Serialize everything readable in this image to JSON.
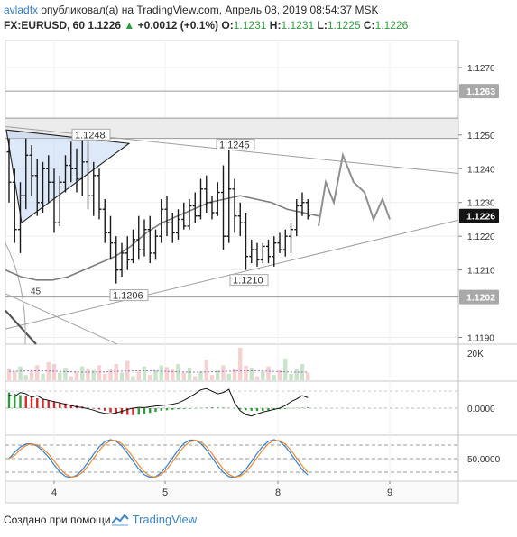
{
  "header": {
    "author": "avladfx",
    "published_text": "опубликовал(а) на TradingView.com, Апрель 08, 2019 08:54:37 MSK",
    "symbol": "FX:EURUSD, 60",
    "last": "1.1226",
    "change": "+0.0012 (+0.1%)",
    "o_label": "O:",
    "o_value": "1.1231",
    "h_label": "H:",
    "h_value": "1.1231",
    "l_label": "L:",
    "l_value": "1.1225",
    "c_label": "C:",
    "c_value": "1.1226"
  },
  "footer": {
    "created_with": "Создано при помощи",
    "brand": "TradingView"
  },
  "colors": {
    "accent_blue": "#2f7fd0",
    "up_green": "#2e9e3b",
    "down_red": "#d42b2b",
    "candle": "#1a1a1a",
    "ma_gray": "#7d7d7d",
    "forecast_gray": "#8f8f8f",
    "stoch_blue": "#2e7fd9",
    "stoch_orange": "#f08a2b"
  },
  "chart_data": [
    {
      "type": "candlestick",
      "panel": "price",
      "x_ticks": [
        "4",
        "5",
        "8",
        "9"
      ],
      "y_ticks": [
        1.127,
        1.125,
        1.124,
        1.123,
        1.122,
        1.121,
        1.119
      ],
      "y_tick_labels": [
        "1.1270",
        "1.1250",
        "1.1240",
        "1.1230",
        "1.1220",
        "1.1210",
        "1.1190"
      ],
      "ylim": [
        1.1188,
        1.1278
      ],
      "price_badges": [
        {
          "value": 1.1263,
          "label": "1.1263",
          "style": "gray"
        },
        {
          "value": 1.1226,
          "label": "1.1226",
          "style": "dark"
        },
        {
          "value": 1.1202,
          "label": "1.1202",
          "style": "gray"
        }
      ],
      "annotations": [
        {
          "text": "1.1248",
          "x": 12,
          "y": 1.1248
        },
        {
          "text": "1.1245",
          "x": 43,
          "y": 1.1245
        },
        {
          "text": "1.1206",
          "x": 23,
          "y": 1.1206
        },
        {
          "text": "1.1210",
          "x": 45,
          "y": 1.121
        },
        {
          "text": "45",
          "x": 2,
          "y": 1.1203
        }
      ],
      "horizontal_levels": [
        1.1263,
        1.1255,
        1.1249,
        1.1202
      ],
      "candles": [
        [
          1.1245,
          1.1249,
          1.123,
          1.1236
        ],
        [
          1.1236,
          1.124,
          1.1218,
          1.1222
        ],
        [
          1.1222,
          1.1236,
          1.1215,
          1.1232
        ],
        [
          1.1232,
          1.1249,
          1.1228,
          1.1244
        ],
        [
          1.1244,
          1.1247,
          1.1232,
          1.1238
        ],
        [
          1.1238,
          1.1243,
          1.1226,
          1.123
        ],
        [
          1.123,
          1.1242,
          1.1227,
          1.124
        ],
        [
          1.124,
          1.1244,
          1.123,
          1.1236
        ],
        [
          1.1236,
          1.124,
          1.1221,
          1.1224
        ],
        [
          1.1224,
          1.1238,
          1.1223,
          1.1236
        ],
        [
          1.1236,
          1.1244,
          1.1233,
          1.1241
        ],
        [
          1.1241,
          1.1248,
          1.1236,
          1.124
        ],
        [
          1.124,
          1.1246,
          1.1233,
          1.1237
        ],
        [
          1.1237,
          1.1249,
          1.1232,
          1.1242
        ],
        [
          1.1242,
          1.1248,
          1.1228,
          1.1232
        ],
        [
          1.1232,
          1.1242,
          1.1226,
          1.1238
        ],
        [
          1.1238,
          1.124,
          1.1225,
          1.1228
        ],
        [
          1.1228,
          1.1231,
          1.1218,
          1.1221
        ],
        [
          1.1221,
          1.1226,
          1.1213,
          1.1218
        ],
        [
          1.1218,
          1.122,
          1.1206,
          1.121
        ],
        [
          1.121,
          1.1218,
          1.1208,
          1.1215
        ],
        [
          1.1215,
          1.122,
          1.121,
          1.1213
        ],
        [
          1.1213,
          1.1222,
          1.1212,
          1.1219
        ],
        [
          1.1219,
          1.1226,
          1.1213,
          1.1216
        ],
        [
          1.1216,
          1.1225,
          1.1214,
          1.1222
        ],
        [
          1.1222,
          1.1226,
          1.1212,
          1.1215
        ],
        [
          1.1215,
          1.1222,
          1.1213,
          1.122
        ],
        [
          1.122,
          1.1231,
          1.1218,
          1.1228
        ],
        [
          1.1228,
          1.1232,
          1.122,
          1.1224
        ],
        [
          1.1224,
          1.1227,
          1.1218,
          1.1221
        ],
        [
          1.1221,
          1.1228,
          1.1219,
          1.1225
        ],
        [
          1.1225,
          1.123,
          1.1222,
          1.1223
        ],
        [
          1.1223,
          1.1231,
          1.1222,
          1.1229
        ],
        [
          1.1229,
          1.1233,
          1.1224,
          1.1226
        ],
        [
          1.1226,
          1.1237,
          1.1225,
          1.1234
        ],
        [
          1.1234,
          1.1238,
          1.1227,
          1.123
        ],
        [
          1.123,
          1.1232,
          1.1225,
          1.1227
        ],
        [
          1.1227,
          1.1236,
          1.1226,
          1.1233
        ],
        [
          1.1233,
          1.1241,
          1.1216,
          1.122
        ],
        [
          1.122,
          1.1246,
          1.1218,
          1.1234
        ],
        [
          1.1234,
          1.1237,
          1.1221,
          1.1226
        ],
        [
          1.1226,
          1.123,
          1.122,
          1.1224
        ],
        [
          1.1224,
          1.1227,
          1.121,
          1.1214
        ],
        [
          1.1214,
          1.1219,
          1.1212,
          1.1216
        ],
        [
          1.1216,
          1.1218,
          1.1211,
          1.1213
        ],
        [
          1.1213,
          1.1218,
          1.1212,
          1.1217
        ],
        [
          1.1217,
          1.1219,
          1.1212,
          1.1214
        ],
        [
          1.1214,
          1.122,
          1.1211,
          1.1218
        ],
        [
          1.1218,
          1.1221,
          1.1215,
          1.1216
        ],
        [
          1.1216,
          1.1222,
          1.1214,
          1.122
        ],
        [
          1.122,
          1.1224,
          1.1215,
          1.1222
        ],
        [
          1.1222,
          1.1231,
          1.122,
          1.1229
        ],
        [
          1.1229,
          1.1233,
          1.1226,
          1.123
        ],
        [
          1.123,
          1.1231,
          1.1225,
          1.1226
        ]
      ],
      "forecast_path": [
        1.1223,
        1.1236,
        1.123,
        1.1244,
        1.1236,
        1.1233,
        1.1225,
        1.1231,
        1.1225
      ],
      "moving_average": [
        1.121,
        1.1208,
        1.1207,
        1.1207,
        1.1208,
        1.121,
        1.1212,
        1.1214,
        1.1217,
        1.1221,
        1.1224,
        1.1226,
        1.1228,
        1.123,
        1.1231,
        1.1232,
        1.1231,
        1.123,
        1.1228,
        1.1227,
        1.1226
      ]
    },
    {
      "type": "bar",
      "panel": "volume",
      "y_tick_labels": [
        "20K"
      ],
      "ylim": [
        0,
        26000
      ]
    },
    {
      "type": "histogram",
      "panel": "oscillator",
      "y_tick_labels": [
        "0.0000"
      ],
      "ylim": [
        -1,
        1
      ]
    },
    {
      "type": "line",
      "panel": "stochastic",
      "y_tick_labels": [
        "50.0000"
      ],
      "ylim": [
        0,
        100
      ],
      "series": [
        {
          "values": []
        },
        {
          "values": []
        }
      ]
    }
  ]
}
